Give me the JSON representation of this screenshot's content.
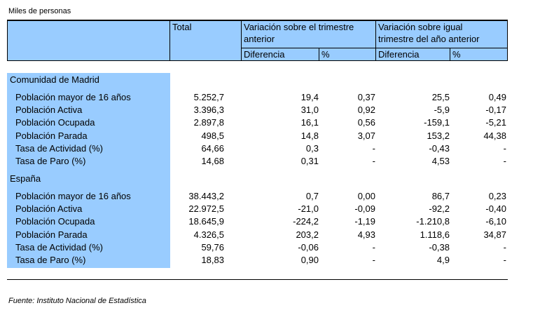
{
  "unit_label": "Miles de personas",
  "header": {
    "total": "Total",
    "var_trim_line1": "Variación sobre el trimestre",
    "var_trim_line2": "anterior",
    "var_anio_line1": "Variación sobre igual",
    "var_anio_line2": "trimestre del año anterior",
    "diff1": "Diferencia",
    "pct1": "%",
    "diff2": "Diferencia",
    "pct2": "%"
  },
  "sections": [
    {
      "name": "Comunidad de Madrid",
      "rows": [
        {
          "label": "Población mayor de 16 años",
          "total": "5.252,7",
          "d1": "19,4",
          "p1": "0,37",
          "d2": "25,5",
          "p2": "0,49"
        },
        {
          "label": "Población Activa",
          "total": "3.396,3",
          "d1": "31,0",
          "p1": "0,92",
          "d2": "-5,9",
          "p2": "-0,17"
        },
        {
          "label": "Población Ocupada",
          "total": "2.897,8",
          "d1": "16,1",
          "p1": "0,56",
          "d2": "-159,1",
          "p2": "-5,21"
        },
        {
          "label": "Población Parada",
          "total": "498,5",
          "d1": "14,8",
          "p1": "3,07",
          "d2": "153,2",
          "p2": "44,38"
        },
        {
          "label": "Tasa de Actividad (%)",
          "total": "64,66",
          "d1": "0,3",
          "p1": "-",
          "d2": "-0,43",
          "p2": "-"
        },
        {
          "label": "Tasa de Paro (%)",
          "total": "14,68",
          "d1": "0,31",
          "p1": "-",
          "d2": "4,53",
          "p2": "-"
        }
      ]
    },
    {
      "name": "España",
      "rows": [
        {
          "label": "Población mayor de 16 años",
          "total": "38.443,2",
          "d1": "0,7",
          "p1": "0,00",
          "d2": "86,7",
          "p2": "0,23"
        },
        {
          "label": "Población Activa",
          "total": "22.972,5",
          "d1": "-21,0",
          "p1": "-0,09",
          "d2": "-92,2",
          "p2": "-0,40"
        },
        {
          "label": "Población Ocupada",
          "total": "18.645,9",
          "d1": "-224,2",
          "p1": "-1,19",
          "d2": "-1.210,8",
          "p2": "-6,10"
        },
        {
          "label": "Población Parada",
          "total": "4.326,5",
          "d1": "203,2",
          "p1": "4,93",
          "d2": "1.118,6",
          "p2": "34,87"
        },
        {
          "label": "Tasa de Actividad (%)",
          "total": "59,76",
          "d1": "-0,06",
          "p1": "-",
          "d2": "-0,38",
          "p2": "-"
        },
        {
          "label": "Tasa de Paro (%)",
          "total": "18,83",
          "d1": "0,90",
          "p1": "-",
          "d2": "4,9",
          "p2": "-"
        }
      ]
    }
  ],
  "source": "Fuente: Instituto Nacional de Estadística"
}
